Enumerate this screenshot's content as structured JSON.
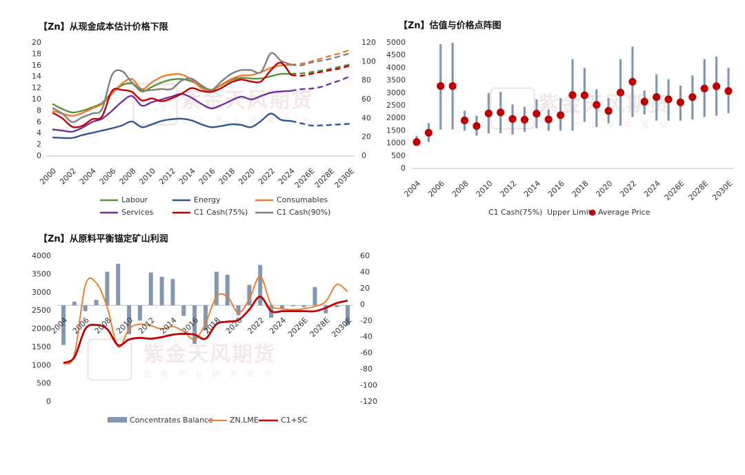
{
  "watermark": {
    "brand": "紫金天风期货",
    "slogan": "立足产业研究驱动"
  },
  "chart_data": [
    {
      "type": "line",
      "title": "【Zn】从现金成本估计价格下限",
      "x": [
        "2000",
        "2001",
        "2002",
        "2003",
        "2004",
        "2005",
        "2006",
        "2007",
        "2008",
        "2009",
        "2010",
        "2011",
        "2012",
        "2013",
        "2014",
        "2015",
        "2016",
        "2017",
        "2018",
        "2019",
        "2020",
        "2021",
        "2022",
        "2023",
        "2024",
        "2025",
        "2026E",
        "2027",
        "2028E",
        "2029",
        "2030E"
      ],
      "x_ticks": [
        "2000",
        "2002",
        "2004",
        "2006",
        "2008",
        "2010",
        "2012",
        "2014",
        "2016",
        "2018",
        "2020",
        "2022",
        "2024",
        "2026E",
        "2028E",
        "2030E"
      ],
      "y_left_ticks": [
        "0",
        "2",
        "4",
        "6",
        "8",
        "10",
        "12",
        "14",
        "16",
        "18",
        "20"
      ],
      "y_right_ticks": [
        "0",
        "20",
        "40",
        "60",
        "80",
        "100",
        "120"
      ],
      "ylim_left": [
        0,
        20
      ],
      "ylim_right": [
        0,
        120
      ],
      "forecast_from": "2024",
      "legend_position": "bottom",
      "series": [
        {
          "name": "Labour",
          "color": "#5b8f3a",
          "axis": "left",
          "values": [
            9.2,
            8.3,
            7.7,
            8.0,
            8.6,
            9.4,
            11.2,
            12.5,
            12.8,
            11.4,
            12.2,
            13.0,
            13.5,
            13.6,
            13.2,
            12.3,
            11.7,
            12.5,
            13.4,
            13.8,
            13.7,
            13.7,
            14.1,
            14.5,
            14.5,
            14.6,
            14.8,
            15.1,
            15.4,
            15.8,
            16.2
          ]
        },
        {
          "name": "Energy",
          "color": "#2f5597",
          "axis": "left",
          "values": [
            3.3,
            3.2,
            3.2,
            3.7,
            4.1,
            4.5,
            4.9,
            5.4,
            6.1,
            5.1,
            5.6,
            6.2,
            6.5,
            6.6,
            6.3,
            5.6,
            5.1,
            5.3,
            5.6,
            5.5,
            5.1,
            6.2,
            7.5,
            6.4,
            6.2,
            5.8,
            5.4,
            5.4,
            5.5,
            5.6,
            5.7
          ]
        },
        {
          "name": "Consumables",
          "color": "#ed7d31",
          "axis": "left",
          "values": [
            8.0,
            7.5,
            7.1,
            7.6,
            8.4,
            9.2,
            11.0,
            12.8,
            13.6,
            11.8,
            13.0,
            14.0,
            14.4,
            14.4,
            13.5,
            12.0,
            11.5,
            12.6,
            13.6,
            14.2,
            14.3,
            14.8,
            15.6,
            16.0,
            16.1,
            16.3,
            16.7,
            17.2,
            17.7,
            18.2,
            18.8
          ]
        },
        {
          "name": "Services",
          "color": "#7030a0",
          "axis": "left",
          "values": [
            4.7,
            4.5,
            4.3,
            5.0,
            6.0,
            6.6,
            8.0,
            9.6,
            10.6,
            8.9,
            9.5,
            10.0,
            10.5,
            11.0,
            10.3,
            9.2,
            8.4,
            9.0,
            9.8,
            10.5,
            10.0,
            10.6,
            11.2,
            11.4,
            11.5,
            11.8,
            11.9,
            12.2,
            12.8,
            13.4,
            14.1
          ]
        },
        {
          "name": "C1 Cash(75%)",
          "color": "#c00000",
          "axis": "right",
          "values": [
            46,
            40,
            31,
            32,
            39,
            42,
            69,
            70,
            68,
            59,
            61,
            58,
            61,
            66,
            72,
            69,
            68,
            72,
            78,
            81,
            79,
            79,
            91,
            99,
            86,
            85,
            87,
            89,
            91,
            93,
            96
          ]
        },
        {
          "name": "C1 Cash(90%)",
          "color": "#7f7f7f",
          "axis": "right",
          "values": [
            51,
            45,
            36,
            41,
            45,
            50,
            86,
            90,
            78,
            70,
            70,
            71,
            71,
            80,
            82,
            75,
            70,
            79,
            87,
            91,
            91,
            89,
            109,
            101,
            97,
            96,
            99,
            101,
            103,
            106,
            109
          ]
        }
      ]
    },
    {
      "type": "scatter",
      "title": "【Zn】估值与价格点阵图",
      "x": [
        "2004",
        "2005",
        "2006",
        "2007",
        "2008",
        "2009",
        "2010",
        "2011",
        "2012",
        "2013",
        "2014",
        "2015",
        "2016",
        "2017",
        "2018",
        "2019",
        "2020",
        "2021",
        "2022",
        "2023",
        "2024",
        "2025",
        "2026E",
        "2027",
        "2028E",
        "2029",
        "2030E"
      ],
      "x_ticks": [
        "2004",
        "2006",
        "2008",
        "2010",
        "2012",
        "2014",
        "2016",
        "2018",
        "2020",
        "2022",
        "2024",
        "2026E",
        "2028E",
        "2030E"
      ],
      "y_ticks": [
        "0",
        "500",
        "1000",
        "1500",
        "2000",
        "2500",
        "3000",
        "3500",
        "4000",
        "4500",
        "5000"
      ],
      "ylim": [
        0,
        5000
      ],
      "legend": [
        "C1 Cash(75%)",
        "Upper Limit",
        "Average Price"
      ],
      "legend_position": "bottom",
      "range_low": [
        1000,
        1050,
        1550,
        1550,
        1500,
        1300,
        1400,
        1400,
        1350,
        1450,
        1600,
        1500,
        1500,
        1500,
        1850,
        1650,
        1800,
        1700,
        2050,
        2150,
        1900,
        1900,
        1900,
        1950,
        2050,
        2100,
        2200
      ],
      "range_high": [
        1300,
        1800,
        4950,
        5000,
        2300,
        2100,
        3000,
        3050,
        2550,
        2450,
        2750,
        2350,
        2800,
        4350,
        4000,
        3150,
        2800,
        4350,
        4850,
        3100,
        3750,
        3550,
        3300,
        3700,
        4350,
        4450,
        4000
      ],
      "average_price": [
        1050,
        1420,
        3280,
        3280,
        1910,
        1690,
        2190,
        2230,
        1970,
        1940,
        2180,
        1950,
        2120,
        2920,
        2910,
        2530,
        2290,
        3020,
        3450,
        2660,
        2840,
        2750,
        2630,
        2840,
        3180,
        3270,
        3080
      ]
    },
    {
      "type": "bar",
      "title": "【Zn】从原料平衡锚定矿山利润",
      "x": [
        "2004",
        "2005",
        "2006",
        "2007",
        "2008",
        "2009",
        "2010",
        "2011",
        "2012",
        "2013",
        "2014",
        "2015",
        "2016",
        "2017",
        "2018",
        "2019",
        "2020",
        "2021",
        "2022",
        "2023",
        "2024",
        "2025",
        "2026E",
        "2027",
        "2028E",
        "2029",
        "2030E"
      ],
      "x_ticks": [
        "2004",
        "2006",
        "2008",
        "2010",
        "2012",
        "2014",
        "2016",
        "2018",
        "2020",
        "2022",
        "2024",
        "2026E",
        "2028E",
        "2030E"
      ],
      "y_left_ticks": [
        "0",
        "500",
        "1000",
        "1500",
        "2000",
        "2500",
        "3000",
        "3500",
        "4000"
      ],
      "y_right_ticks": [
        "-120",
        "-100",
        "-80",
        "-60",
        "-40",
        "-20",
        "0",
        "20",
        "40",
        "60"
      ],
      "ylim_left": [
        0,
        4000
      ],
      "ylim_right": [
        -120,
        60
      ],
      "left_axis_baseline": 2650,
      "legend": [
        "Concentrates Balance",
        "ZN.LME",
        "C1+SC"
      ],
      "legend_position": "bottom",
      "bars": {
        "name": "Concentrates Balance",
        "color": "#8497b0",
        "values": [
          1560,
          2750,
          2490,
          2800,
          3570,
          3790,
          1860,
          2230,
          3550,
          3430,
          3370,
          2360,
          1590,
          1960,
          3570,
          3490,
          2380,
          3210,
          3760,
          2310,
          2540,
          2620,
          2600,
          3150,
          2430,
          2600,
          2100
        ]
      },
      "series": [
        {
          "name": "ZN.LME",
          "color": "#ed7d31",
          "values": [
            -73,
            -62,
            24,
            27,
            -3,
            -52,
            -30,
            -24,
            -26,
            -30,
            -27,
            -33,
            -43,
            -23,
            10,
            10,
            -10,
            7,
            35,
            0,
            -5,
            -6,
            -5,
            -2,
            4,
            25,
            16
          ]
        },
        {
          "name": "C1+SC",
          "color": "#c00000",
          "values": [
            -72,
            -65,
            -30,
            -25,
            -30,
            -50,
            -43,
            -41,
            -42,
            -40,
            -37,
            -36,
            -37,
            -42,
            -24,
            -21,
            -19,
            -6,
            10,
            -8,
            -8,
            -8,
            -8,
            -8,
            -4,
            2,
            5
          ]
        }
      ]
    }
  ]
}
